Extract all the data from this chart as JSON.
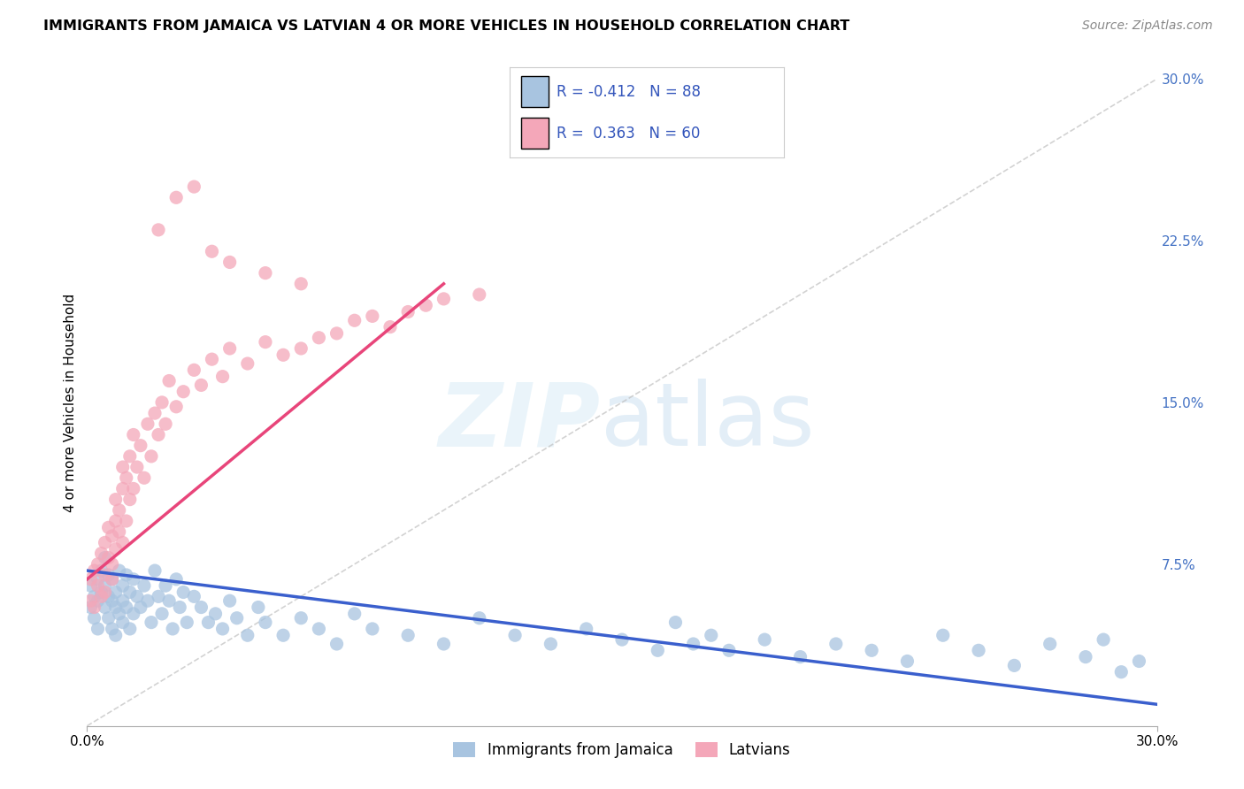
{
  "title": "IMMIGRANTS FROM JAMAICA VS LATVIAN 4 OR MORE VEHICLES IN HOUSEHOLD CORRELATION CHART",
  "source": "Source: ZipAtlas.com",
  "ylabel": "4 or more Vehicles in Household",
  "xmin": 0.0,
  "xmax": 0.3,
  "ymin": 0.0,
  "ymax": 0.3,
  "y_ticks_right": [
    0.0,
    0.075,
    0.15,
    0.225,
    0.3
  ],
  "y_tick_labels_right": [
    "",
    "7.5%",
    "15.0%",
    "22.5%",
    "30.0%"
  ],
  "legend_label_1": "Immigrants from Jamaica",
  "legend_label_2": "Latvians",
  "R1": -0.412,
  "N1": 88,
  "R2": 0.363,
  "N2": 60,
  "color_jamaica": "#a8c4e0",
  "color_latvian": "#f4a7b9",
  "color_line_jamaica": "#3a5fcd",
  "color_line_latvian": "#e8457a",
  "color_diag": "#c0c0c0",
  "scatter_jamaica_x": [
    0.001,
    0.001,
    0.002,
    0.002,
    0.003,
    0.003,
    0.003,
    0.004,
    0.004,
    0.005,
    0.005,
    0.005,
    0.006,
    0.006,
    0.006,
    0.007,
    0.007,
    0.007,
    0.008,
    0.008,
    0.008,
    0.009,
    0.009,
    0.01,
    0.01,
    0.01,
    0.011,
    0.011,
    0.012,
    0.012,
    0.013,
    0.013,
    0.014,
    0.015,
    0.016,
    0.017,
    0.018,
    0.019,
    0.02,
    0.021,
    0.022,
    0.023,
    0.024,
    0.025,
    0.026,
    0.027,
    0.028,
    0.03,
    0.032,
    0.034,
    0.036,
    0.038,
    0.04,
    0.042,
    0.045,
    0.048,
    0.05,
    0.055,
    0.06,
    0.065,
    0.07,
    0.075,
    0.08,
    0.09,
    0.1,
    0.11,
    0.12,
    0.13,
    0.14,
    0.15,
    0.16,
    0.165,
    0.17,
    0.175,
    0.18,
    0.19,
    0.2,
    0.21,
    0.22,
    0.23,
    0.24,
    0.25,
    0.26,
    0.27,
    0.28,
    0.285,
    0.29,
    0.295
  ],
  "scatter_jamaica_y": [
    0.065,
    0.055,
    0.06,
    0.05,
    0.068,
    0.058,
    0.045,
    0.072,
    0.062,
    0.078,
    0.055,
    0.065,
    0.06,
    0.07,
    0.05,
    0.058,
    0.068,
    0.045,
    0.062,
    0.055,
    0.042,
    0.072,
    0.052,
    0.065,
    0.058,
    0.048,
    0.07,
    0.055,
    0.062,
    0.045,
    0.068,
    0.052,
    0.06,
    0.055,
    0.065,
    0.058,
    0.048,
    0.072,
    0.06,
    0.052,
    0.065,
    0.058,
    0.045,
    0.068,
    0.055,
    0.062,
    0.048,
    0.06,
    0.055,
    0.048,
    0.052,
    0.045,
    0.058,
    0.05,
    0.042,
    0.055,
    0.048,
    0.042,
    0.05,
    0.045,
    0.038,
    0.052,
    0.045,
    0.042,
    0.038,
    0.05,
    0.042,
    0.038,
    0.045,
    0.04,
    0.035,
    0.048,
    0.038,
    0.042,
    0.035,
    0.04,
    0.032,
    0.038,
    0.035,
    0.03,
    0.042,
    0.035,
    0.028,
    0.038,
    0.032,
    0.04,
    0.025,
    0.03
  ],
  "scatter_latvian_x": [
    0.001,
    0.001,
    0.002,
    0.002,
    0.003,
    0.003,
    0.004,
    0.004,
    0.005,
    0.005,
    0.005,
    0.006,
    0.006,
    0.007,
    0.007,
    0.007,
    0.008,
    0.008,
    0.008,
    0.009,
    0.009,
    0.01,
    0.01,
    0.01,
    0.011,
    0.011,
    0.012,
    0.012,
    0.013,
    0.013,
    0.014,
    0.015,
    0.016,
    0.017,
    0.018,
    0.019,
    0.02,
    0.021,
    0.022,
    0.023,
    0.025,
    0.027,
    0.03,
    0.032,
    0.035,
    0.038,
    0.04,
    0.045,
    0.05,
    0.055,
    0.06,
    0.065,
    0.07,
    0.075,
    0.08,
    0.085,
    0.09,
    0.095,
    0.1,
    0.11
  ],
  "scatter_latvian_y": [
    0.068,
    0.058,
    0.055,
    0.072,
    0.065,
    0.075,
    0.06,
    0.08,
    0.07,
    0.085,
    0.062,
    0.078,
    0.092,
    0.068,
    0.088,
    0.075,
    0.082,
    0.095,
    0.105,
    0.09,
    0.1,
    0.085,
    0.11,
    0.12,
    0.095,
    0.115,
    0.105,
    0.125,
    0.11,
    0.135,
    0.12,
    0.13,
    0.115,
    0.14,
    0.125,
    0.145,
    0.135,
    0.15,
    0.14,
    0.16,
    0.148,
    0.155,
    0.165,
    0.158,
    0.17,
    0.162,
    0.175,
    0.168,
    0.178,
    0.172,
    0.175,
    0.18,
    0.182,
    0.188,
    0.19,
    0.185,
    0.192,
    0.195,
    0.198,
    0.2
  ],
  "scatter_latvian_outliers_x": [
    0.02,
    0.025,
    0.03,
    0.035,
    0.04,
    0.05,
    0.06
  ],
  "scatter_latvian_outliers_y": [
    0.23,
    0.245,
    0.25,
    0.22,
    0.215,
    0.21,
    0.205
  ],
  "line_jamaica_x0": 0.0,
  "line_jamaica_y0": 0.072,
  "line_jamaica_x1": 0.3,
  "line_jamaica_y1": 0.01,
  "line_latvian_x0": 0.0,
  "line_latvian_y0": 0.068,
  "line_latvian_x1": 0.1,
  "line_latvian_y1": 0.205
}
